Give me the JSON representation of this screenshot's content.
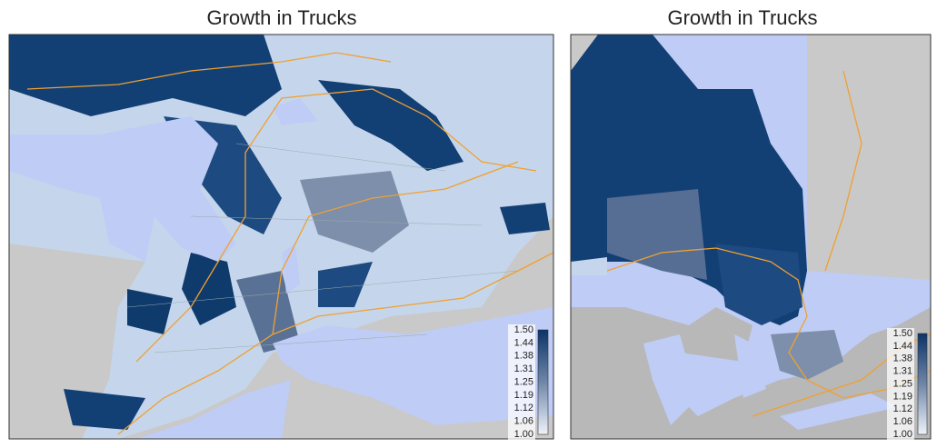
{
  "panels": [
    {
      "title": "Growth in Trucks",
      "legend": {
        "labels": [
          "1.50",
          "1.44",
          "1.38",
          "1.31",
          "1.25",
          "1.19",
          "1.12",
          "1.06",
          "1.00"
        ]
      }
    },
    {
      "title": "Growth in Trucks",
      "legend": {
        "labels": [
          "1.50",
          "1.44",
          "1.38",
          "1.31",
          "1.25",
          "1.19",
          "1.12",
          "1.06",
          "1.00"
        ]
      }
    }
  ]
}
